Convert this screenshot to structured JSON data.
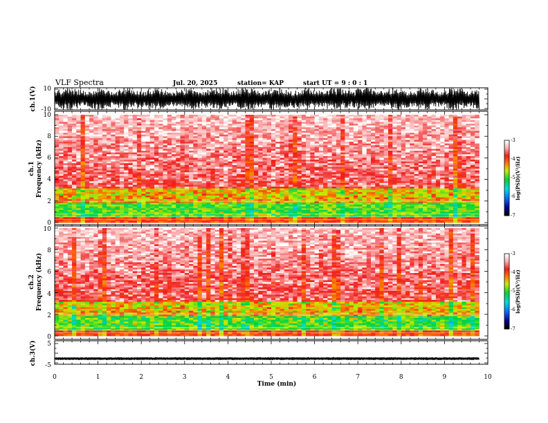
{
  "header": {
    "title": "VLF Spectra",
    "date": "Jul. 20, 2025",
    "station": "station= KAP",
    "start": "start UT = 9 : 0 : 1"
  },
  "colors": {
    "background": "#ffffff",
    "axis": "#000000",
    "trace": "#000000"
  },
  "chart_data": [
    {
      "type": "line",
      "name": "ch1-waveform",
      "ylabel": "ch.1(V)",
      "ylim": [
        -10,
        10
      ],
      "yticks": [
        "10",
        "-10"
      ],
      "xlim": [
        0,
        10
      ],
      "data_extent_min": 9.8,
      "note": "dense waveform oscillating near full scale"
    },
    {
      "type": "heatmap",
      "name": "ch1-spectrogram",
      "ylabel_channel": "ch.1",
      "ylabel": "Frequency (kHz)",
      "ylim": [
        0,
        10
      ],
      "yticks": [
        "10",
        "8",
        "6",
        "4",
        "2",
        "0"
      ],
      "xlim": [
        0,
        10
      ],
      "data_extent_min": 9.8,
      "colorbar": {
        "label": "log(PSD)(V²/Hz)",
        "range": [
          -7,
          -3
        ],
        "ticks": [
          "-3",
          "-4",
          "-5",
          "-6",
          "-7"
        ]
      }
    },
    {
      "type": "heatmap",
      "name": "ch2-spectrogram",
      "ylabel_channel": "ch.2",
      "ylabel": "Frequency (kHz)",
      "ylim": [
        0,
        10
      ],
      "yticks": [
        "10",
        "8",
        "6",
        "4",
        "2",
        "0"
      ],
      "xlim": [
        0,
        10
      ],
      "data_extent_min": 9.8,
      "colorbar": {
        "label": "log(PSD)(V²/Hz)",
        "range": [
          -7,
          -3
        ],
        "ticks": [
          "-3",
          "-4",
          "-5",
          "-6",
          "-7"
        ]
      }
    },
    {
      "type": "line",
      "name": "ch3-waveform",
      "ylabel": "ch.3(V)",
      "ylim": [
        -5,
        5
      ],
      "yticks": [
        "5",
        "-5"
      ],
      "xlim": [
        0,
        10
      ],
      "data_extent_min": 9.8,
      "baseline_value": -2.6,
      "note": "thin band of small oscillation around baseline"
    }
  ],
  "xaxis": {
    "label": "Time (min)",
    "ticks": [
      "0",
      "1",
      "2",
      "3",
      "4",
      "5",
      "6",
      "7",
      "8",
      "9",
      "10"
    ]
  }
}
